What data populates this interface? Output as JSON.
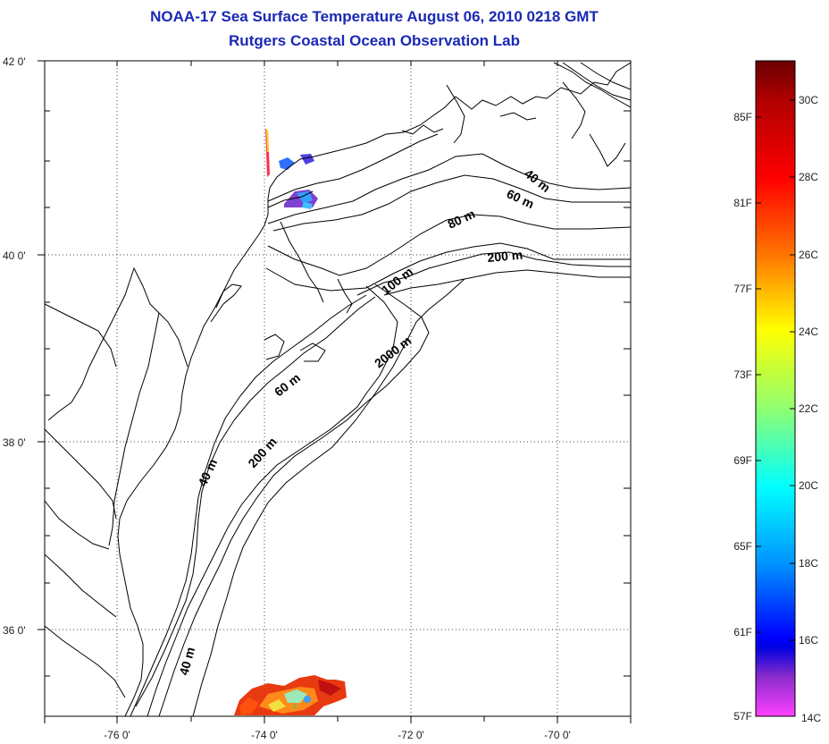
{
  "title": {
    "line1": "NOAA-17 Sea Surface Temperature August 06, 2010 0218 GMT",
    "line2": "Rutgers Coastal Ocean Observation Lab"
  },
  "map": {
    "lat_labels": [
      "42 0'",
      "40 0'",
      "38 0'",
      "36 0'"
    ],
    "lon_labels": [
      "-76 0'",
      "-74 0'",
      "-72 0'",
      "-70 0'"
    ],
    "contour_labels": [
      "40 m",
      "60 m",
      "80 m",
      "200 m",
      "100 m",
      "2000 m",
      "60 m",
      "40 m",
      "200 m",
      "40 m"
    ],
    "grid": "dotted",
    "land_color": "#ffffff",
    "coast_color": "#000000"
  },
  "colorbar": {
    "fahrenheit_labels": [
      "85F",
      "81F",
      "77F",
      "73F",
      "69F",
      "65F",
      "61F",
      "57F"
    ],
    "celsius_labels": [
      "30C",
      "28C",
      "26C",
      "24C",
      "22C",
      "20C",
      "18C",
      "16C",
      "14C"
    ],
    "colors": [
      "#7a0000",
      "#ff0000",
      "#ff8000",
      "#ffff00",
      "#80ff80",
      "#00ffff",
      "#0080ff",
      "#0000ff",
      "#8000c0",
      "#ff40ff"
    ]
  }
}
